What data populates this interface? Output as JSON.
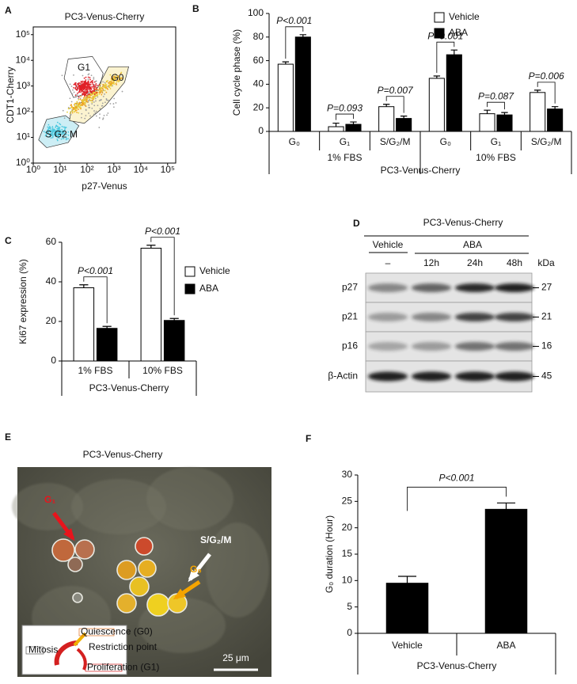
{
  "chart_data": [
    {
      "label": "A",
      "type": "flow_cytometry",
      "title": "PC3-Venus-Cherry",
      "xlabel": "p27-Venus",
      "ylabel": "CDT1-Cherry",
      "log_scale": true,
      "xlim": [
        1,
        200000
      ],
      "ylim": [
        1,
        200000
      ],
      "xticks": [
        {
          "value": 1,
          "label": "10⁰"
        },
        {
          "value": 10,
          "label": "10¹"
        },
        {
          "value": 100,
          "label": "10²"
        },
        {
          "value": 1000,
          "label": "10³"
        },
        {
          "value": 10000,
          "label": "10⁴"
        },
        {
          "value": 100000,
          "label": "10⁵"
        }
      ],
      "yticks": [
        {
          "value": 1,
          "label": "10⁰"
        },
        {
          "value": 10,
          "label": "10¹"
        },
        {
          "value": 100,
          "label": "10²"
        },
        {
          "value": 1000,
          "label": "10³"
        },
        {
          "value": 10000,
          "label": "10⁴"
        },
        {
          "value": 100000,
          "label": "10⁵"
        }
      ],
      "gates": [
        "G1",
        "G0",
        "S G2 M"
      ]
    },
    {
      "label": "B",
      "type": "bar",
      "ylabel": "Cell cycle phase (%)",
      "xlabel": "PC3-Venus-Cherry",
      "categories": [
        "G₀",
        "G₁",
        "S/G₂/M",
        "G₀",
        "G₁",
        "S/G₂/M"
      ],
      "groups": [
        "1% FBS",
        "10% FBS"
      ],
      "series": [
        {
          "name": "Vehicle",
          "color": "#ffffff",
          "values": [
            57,
            4,
            21,
            45,
            15,
            33
          ],
          "errors": [
            2,
            3,
            2,
            2,
            3,
            2
          ]
        },
        {
          "name": "ABA",
          "color": "#000000",
          "values": [
            80,
            6,
            11,
            65,
            14,
            19
          ],
          "errors": [
            2,
            2,
            2,
            4,
            2,
            2
          ]
        }
      ],
      "ylim": [
        0,
        100
      ],
      "yticks": [
        0,
        20,
        40,
        60,
        80,
        100
      ],
      "legend": "upper right",
      "annotations": [
        "P<0.001",
        "P=0.093",
        "P=0.007",
        "P<0.001",
        "P=0.087",
        "P=0.006"
      ]
    },
    {
      "label": "C",
      "type": "bar",
      "ylabel": "Ki67 expression (%)",
      "xlabel": "PC3-Venus-Cherry",
      "categories": [
        "1% FBS",
        "10% FBS"
      ],
      "series": [
        {
          "name": "Vehicle",
          "color": "#ffffff",
          "values": [
            37,
            57
          ],
          "errors": [
            1.5,
            1.5
          ]
        },
        {
          "name": "ABA",
          "color": "#000000",
          "values": [
            16.5,
            20.5
          ],
          "errors": [
            1,
            1
          ]
        }
      ],
      "ylim": [
        0,
        60
      ],
      "yticks": [
        0,
        20,
        40,
        60
      ],
      "legend": "right",
      "annotations": [
        "P<0.001",
        "P<0.001"
      ]
    },
    {
      "label": "F",
      "type": "bar",
      "ylabel": "G₀ duration (Hour)",
      "xlabel": "PC3-Venus-Cherry",
      "categories": [
        "Vehicle",
        "ABA"
      ],
      "series": [
        {
          "color": "#000000",
          "values": [
            9.5,
            23.5
          ],
          "errors": [
            1.3,
            1.2
          ]
        }
      ],
      "ylim": [
        0,
        30
      ],
      "yticks": [
        0,
        5,
        10,
        15,
        20,
        25,
        30
      ],
      "annotations": [
        "P<0.001"
      ]
    }
  ],
  "blot": {
    "label": "D",
    "title": "PC3-Venus-Cherry",
    "groups": [
      "Vehicle",
      "ABA"
    ],
    "lanes": [
      "–",
      "12h",
      "24h",
      "48h"
    ],
    "unit": "kDa",
    "rows": [
      {
        "name": "p27",
        "kda": 27
      },
      {
        "name": "p21",
        "kda": 21
      },
      {
        "name": "p16",
        "kda": 16
      },
      {
        "name": "β-Actin",
        "kda": 45
      }
    ]
  },
  "micrograph": {
    "label": "E",
    "title": "PC3-Venus-Cherry",
    "labels": [
      "G₁",
      "S/G₂/M",
      "G₀"
    ],
    "scale_bar": "25 μm",
    "inset": [
      "Quiescence (G0)",
      "Restriction point",
      "Mitosis",
      "Proliferation (G1)"
    ]
  }
}
